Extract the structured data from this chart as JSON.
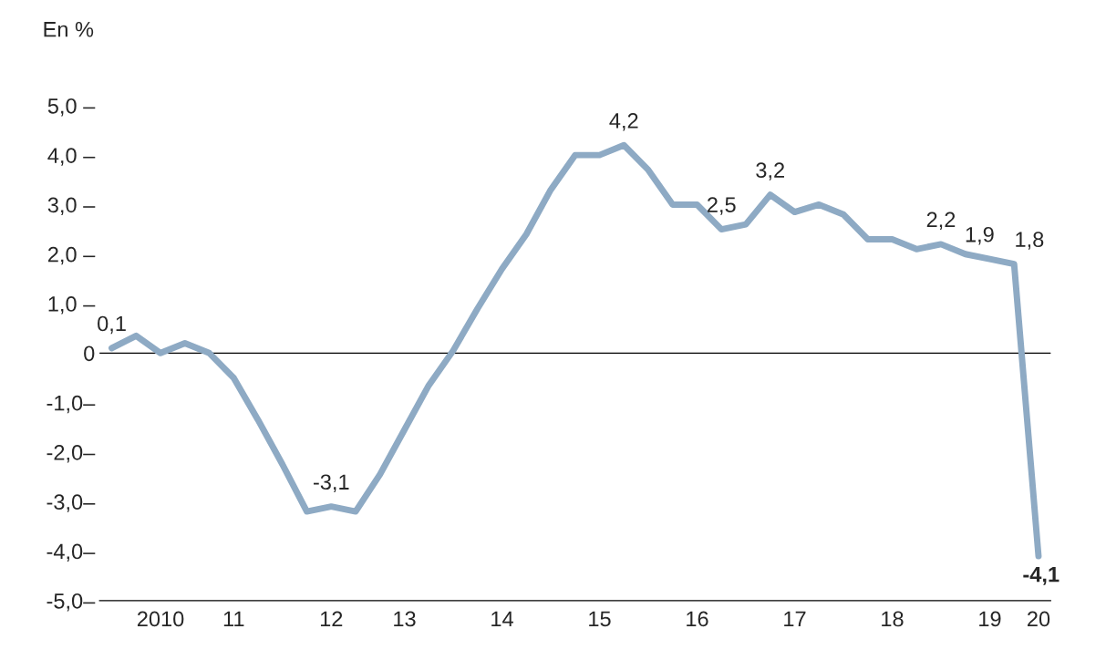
{
  "chart_data": {
    "type": "line",
    "ylabel": "En %",
    "categories": [
      null,
      null,
      "2010",
      null,
      null,
      "11",
      null,
      null,
      null,
      "12",
      null,
      null,
      "13",
      null,
      null,
      null,
      "14",
      null,
      null,
      null,
      "15",
      null,
      null,
      null,
      "16",
      null,
      null,
      null,
      "17",
      null,
      null,
      null,
      "18",
      null,
      null,
      null,
      "19",
      null,
      "20"
    ],
    "series": [
      {
        "color": "#8eaac4",
        "values": [
          0.1,
          0.35,
          0.0,
          0.2,
          0.0,
          -0.5,
          -1.35,
          -2.25,
          -3.2,
          -3.1,
          -3.2,
          -2.45,
          -1.55,
          -0.65,
          0.05,
          0.9,
          1.7,
          2.4,
          3.3,
          4.0,
          4.0,
          4.2,
          3.7,
          3.0,
          3.0,
          2.5,
          2.6,
          3.2,
          2.85,
          3.0,
          2.8,
          2.3,
          2.3,
          2.1,
          2.2,
          2.0,
          1.9,
          1.8,
          -4.1
        ],
        "value_labels": [
          "0,1",
          null,
          null,
          null,
          null,
          null,
          null,
          null,
          null,
          "-3,1",
          null,
          null,
          null,
          null,
          null,
          null,
          null,
          null,
          null,
          null,
          null,
          "4,2",
          null,
          null,
          null,
          "2,5",
          null,
          "3,2",
          null,
          null,
          null,
          null,
          null,
          null,
          "2,2",
          null,
          "1,9",
          "1,8",
          "-4,1"
        ]
      }
    ],
    "ylim": [
      -5,
      5
    ],
    "yticks": [
      {
        "value": 5,
        "label": "5,0 –"
      },
      {
        "value": 4,
        "label": "4,0 –"
      },
      {
        "value": 3,
        "label": "3,0 –"
      },
      {
        "value": 2,
        "label": "2,0 –"
      },
      {
        "value": 1,
        "label": "1,0 –"
      },
      {
        "value": 0,
        "label": "0"
      },
      {
        "value": -1,
        "label": "-1,0–"
      },
      {
        "value": -2,
        "label": "-2,0–"
      },
      {
        "value": -3,
        "label": "-3,0–"
      },
      {
        "value": -4,
        "label": "-4,0–"
      },
      {
        "value": -5,
        "label": "-5,0–"
      }
    ],
    "ref_lines": [
      {
        "axis": "y",
        "value": 0,
        "color": "#000000"
      }
    ],
    "grid": false,
    "legend": false,
    "line_style": "solid",
    "marker": "none"
  }
}
